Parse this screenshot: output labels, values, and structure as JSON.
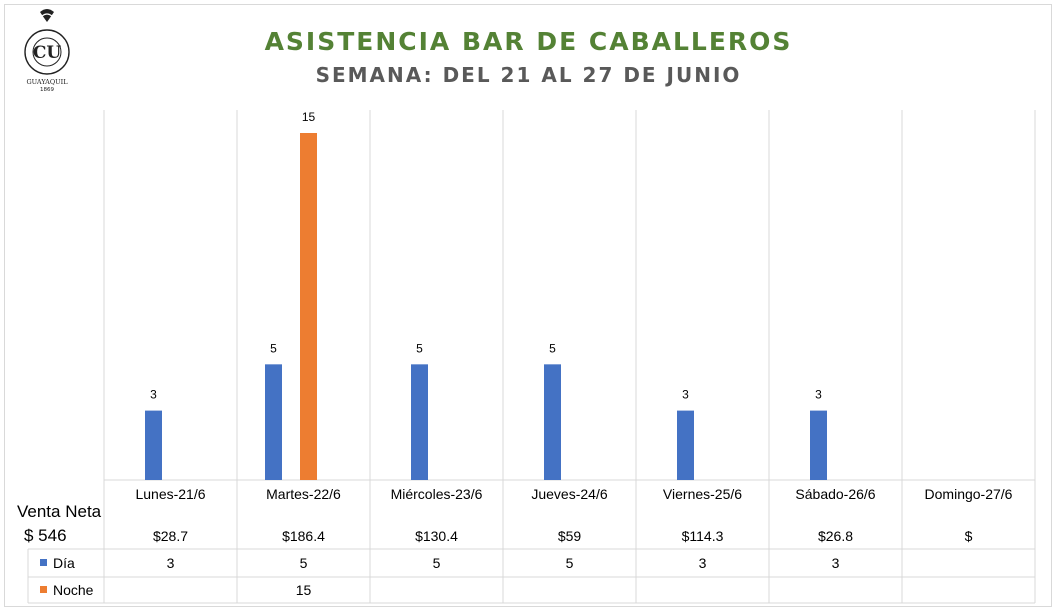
{
  "header": {
    "title": "ASISTENCIA BAR DE CABALLEROS",
    "subtitle": "SEMANA: DEL 21 AL 27 DE JUNIO"
  },
  "logo": {
    "lettering": "CLUB DE LA UNION GUAYAQUIL 1869"
  },
  "table": {
    "sales_label": "Venta Neta",
    "sales_total": "$ 546"
  },
  "colors": {
    "dia": "#4472C4",
    "noche": "#ED7D31",
    "title": "#548235",
    "subtitle": "#595959"
  },
  "chart_data": {
    "type": "bar",
    "title": "ASISTENCIA BAR DE CABALLEROS",
    "subtitle": "SEMANA: DEL 21 AL 27 DE JUNIO",
    "categories": [
      "Lunes-21/6",
      "Martes-22/6",
      "Miércoles-23/6",
      "Jueves-24/6",
      "Viernes-25/6",
      "Sábado-26/6",
      "Domingo-27/6"
    ],
    "sales": [
      "$28.7",
      "$186.4",
      "$130.4",
      "$59",
      "$114.3",
      "$26.8",
      "$"
    ],
    "series": [
      {
        "name": "Día",
        "color": "#4472C4",
        "values": [
          3,
          5,
          5,
          5,
          3,
          3,
          null
        ]
      },
      {
        "name": "Noche",
        "color": "#ED7D31",
        "values": [
          null,
          15,
          null,
          null,
          null,
          null,
          null
        ]
      }
    ],
    "ylim": [
      0,
      16
    ],
    "grid": false,
    "legend": "data-table"
  }
}
